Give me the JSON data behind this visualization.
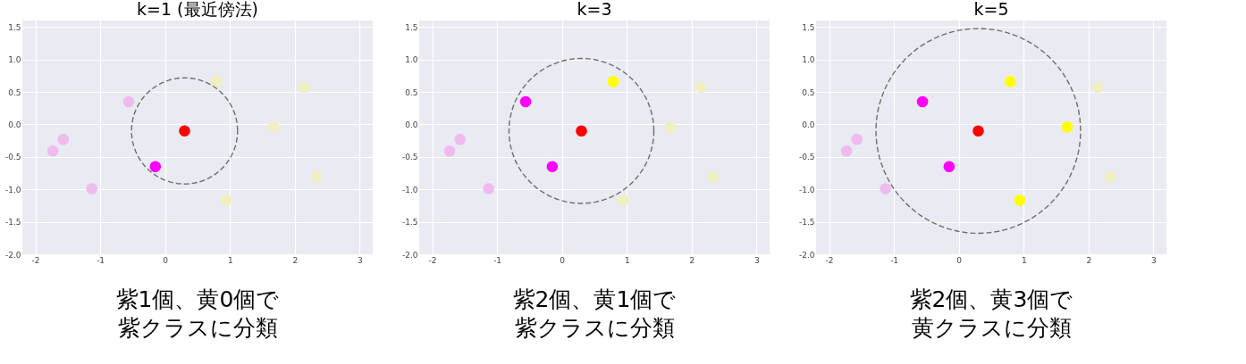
{
  "chart_data": [
    {
      "type": "scatter",
      "title": "k=1 (最近傍法)",
      "xlim": [
        -2.2,
        3.2
      ],
      "xticks": [
        -2,
        -1,
        0,
        1,
        2,
        3
      ],
      "ylim": [
        -2.0,
        1.6
      ],
      "yticks": [
        {
          "value": -2,
          "label": "-2.0"
        },
        {
          "value": -1.5,
          "label": "-1.5"
        },
        {
          "value": -1,
          "label": "-1.0"
        },
        {
          "value": -0.5,
          "label": "-0.5"
        },
        {
          "value": 0,
          "label": "0.0"
        },
        {
          "value": 0.5,
          "label": "0.5"
        },
        {
          "value": 1,
          "label": "1.0"
        },
        {
          "value": 1.5,
          "label": "1.5"
        }
      ],
      "grid": true,
      "annotations": [
        "紫1個、黄0個で紫クラスに分類"
      ],
      "series": [
        {
          "marker": "circle",
          "color": "#efbbef",
          "x": [
            -0.56,
            -1.57,
            -1.73,
            -1.13
          ],
          "values": [
            0.35,
            -0.23,
            -0.41,
            -0.99
          ]
        },
        {
          "marker": "circle",
          "color": "#efefbf",
          "x": [
            0.79,
            1.67,
            2.14,
            2.33,
            0.94
          ],
          "values": [
            0.66,
            -0.04,
            0.57,
            -0.81,
            -1.17
          ]
        },
        {
          "marker": "circle",
          "color": "#ff00ff",
          "x": [
            -0.15
          ],
          "values": [
            -0.65
          ]
        },
        {
          "marker": "circle",
          "color": "#ff0000",
          "x": [
            0.3
          ],
          "values": [
            -0.1
          ]
        }
      ]
    },
    {
      "type": "scatter",
      "title": "k=3",
      "xlim": [
        -2.2,
        3.2
      ],
      "xticks": [
        -2,
        -1,
        0,
        1,
        2,
        3
      ],
      "ylim": [
        -2.0,
        1.6
      ],
      "yticks": [
        {
          "value": -2,
          "label": "-2.0"
        },
        {
          "value": -1.5,
          "label": "-1.5"
        },
        {
          "value": -1,
          "label": "-1.0"
        },
        {
          "value": -0.5,
          "label": "-0.5"
        },
        {
          "value": 0,
          "label": "0.0"
        },
        {
          "value": 0.5,
          "label": "0.5"
        },
        {
          "value": 1,
          "label": "1.0"
        },
        {
          "value": 1.5,
          "label": "1.5"
        }
      ],
      "grid": true,
      "annotations": [
        "紫2個、黄1個で紫クラスに分類"
      ],
      "series": [
        {
          "marker": "circle",
          "color": "#efbbef",
          "x": [
            -1.57,
            -1.73,
            -1.13
          ],
          "values": [
            -0.23,
            -0.41,
            -0.99
          ]
        },
        {
          "marker": "circle",
          "color": "#efefbf",
          "x": [
            1.67,
            2.14,
            2.33,
            0.94
          ],
          "values": [
            -0.04,
            0.57,
            -0.81,
            -1.17
          ]
        },
        {
          "marker": "circle",
          "color": "#ff00ff",
          "x": [
            -0.56,
            -0.15
          ],
          "values": [
            0.35,
            -0.65
          ]
        },
        {
          "marker": "circle",
          "color": "#ffff00",
          "x": [
            0.79
          ],
          "values": [
            0.66
          ]
        },
        {
          "marker": "circle",
          "color": "#ff0000",
          "x": [
            0.3
          ],
          "values": [
            -0.1
          ]
        }
      ]
    },
    {
      "type": "scatter",
      "title": "k=5",
      "xlim": [
        -2.2,
        3.2
      ],
      "xticks": [
        -2,
        -1,
        0,
        1,
        2,
        3
      ],
      "ylim": [
        -2.0,
        1.6
      ],
      "yticks": [
        {
          "value": -2,
          "label": "-2.0"
        },
        {
          "value": -1.5,
          "label": "-1.5"
        },
        {
          "value": -1,
          "label": "-1.0"
        },
        {
          "value": -0.5,
          "label": "-0.5"
        },
        {
          "value": 0,
          "label": "0.0"
        },
        {
          "value": 0.5,
          "label": "0.5"
        },
        {
          "value": 1,
          "label": "1.0"
        },
        {
          "value": 1.5,
          "label": "1.5"
        }
      ],
      "grid": true,
      "annotations": [
        "紫2個、黄3個で黄クラスに分類"
      ],
      "series": [
        {
          "marker": "circle",
          "color": "#efbbef",
          "x": [
            -1.57,
            -1.73,
            -1.13
          ],
          "values": [
            -0.23,
            -0.41,
            -0.99
          ]
        },
        {
          "marker": "circle",
          "color": "#efefbf",
          "x": [
            2.14,
            2.33
          ],
          "values": [
            0.57,
            -0.81
          ]
        },
        {
          "marker": "circle",
          "color": "#ff00ff",
          "x": [
            -0.56,
            -0.15
          ],
          "values": [
            0.35,
            -0.65
          ]
        },
        {
          "marker": "circle",
          "color": "#ffff00",
          "x": [
            0.79,
            1.67,
            0.94
          ],
          "values": [
            0.66,
            -0.04,
            -1.17
          ]
        },
        {
          "marker": "circle",
          "color": "#ff0000",
          "x": [
            0.3
          ],
          "values": [
            -0.1
          ]
        }
      ]
    }
  ]
}
